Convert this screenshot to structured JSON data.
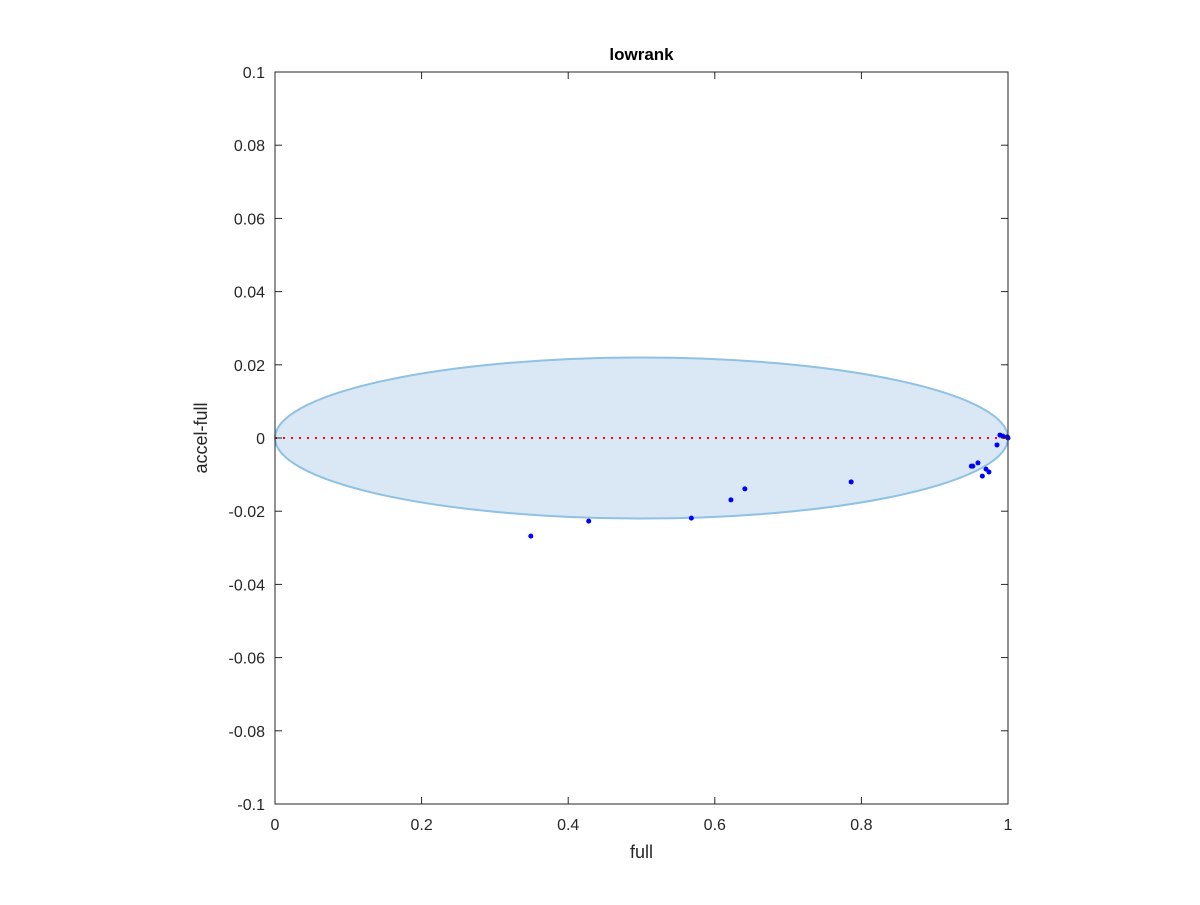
{
  "chart_data": {
    "type": "scatter",
    "title": "lowrank",
    "xlabel": "full",
    "ylabel": "accel-full",
    "xlim": [
      0,
      1
    ],
    "ylim": [
      -0.1,
      0.1
    ],
    "xticks": [
      0,
      0.2,
      0.4,
      0.6,
      0.8,
      1
    ],
    "xtick_labels": [
      "0",
      "0.2",
      "0.4",
      "0.6",
      "0.8",
      "1"
    ],
    "yticks": [
      -0.1,
      -0.08,
      -0.06,
      -0.04,
      -0.02,
      0,
      0.02,
      0.04,
      0.06,
      0.08,
      0.1
    ],
    "ytick_labels": [
      "-0.1",
      "-0.08",
      "-0.06",
      "-0.04",
      "-0.02",
      "0",
      "0.02",
      "0.04",
      "0.06",
      "0.08",
      "0.1"
    ],
    "grid": false,
    "colors": {
      "points": "#0000ff",
      "zero_line": "#ff0000",
      "ellipse_fill": "#d9e8f4",
      "ellipse_edge": "#8fc1e3"
    },
    "ellipse": {
      "center": [
        0.5,
        0
      ],
      "semi_axes": [
        0.5,
        0.022
      ]
    },
    "zero_line": {
      "y": 0,
      "style": "dotted"
    },
    "points": [
      {
        "x": 0.349,
        "y": -0.0268
      },
      {
        "x": 0.428,
        "y": -0.0227
      },
      {
        "x": 0.568,
        "y": -0.0219
      },
      {
        "x": 0.622,
        "y": -0.0169
      },
      {
        "x": 0.641,
        "y": -0.0139
      },
      {
        "x": 0.786,
        "y": -0.012
      },
      {
        "x": 0.95,
        "y": -0.0077
      },
      {
        "x": 0.952,
        "y": -0.0077
      },
      {
        "x": 0.959,
        "y": -0.0068
      },
      {
        "x": 0.965,
        "y": -0.0104
      },
      {
        "x": 0.97,
        "y": -0.0085
      },
      {
        "x": 0.974,
        "y": -0.0093
      },
      {
        "x": 0.985,
        "y": -0.0019
      },
      {
        "x": 0.989,
        "y": 0.0008
      },
      {
        "x": 0.993,
        "y": 0.0005
      },
      {
        "x": 0.999,
        "y": 0.0003
      },
      {
        "x": 1.0,
        "y": 0.0
      }
    ]
  }
}
